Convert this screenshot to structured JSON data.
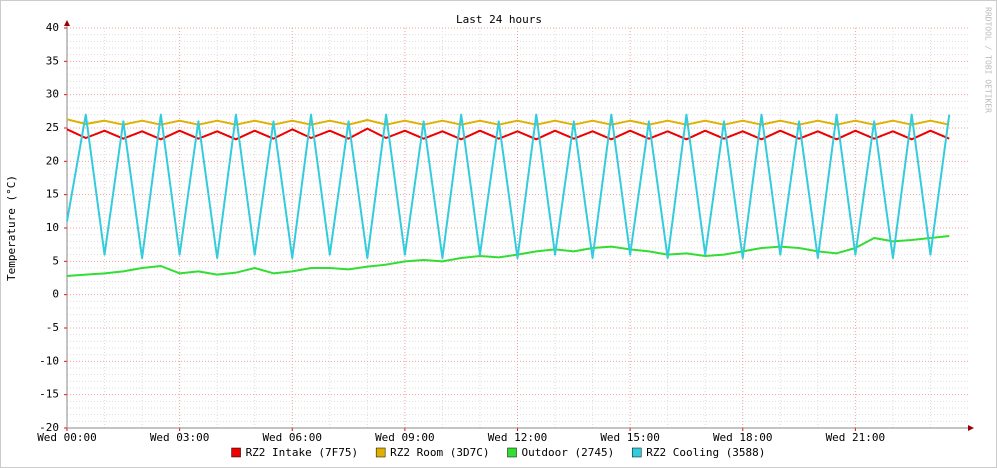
{
  "chart_data": {
    "type": "line",
    "title": "Last 24 hours",
    "y_label": "Temperature (°C)",
    "watermark": "RRDTOOL / TOBI OETIKER",
    "xlim": [
      0,
      24
    ],
    "xticks": [
      {
        "value": 0,
        "label": "Wed 00:00"
      },
      {
        "value": 3,
        "label": "Wed 03:00"
      },
      {
        "value": 6,
        "label": "Wed 06:00"
      },
      {
        "value": 9,
        "label": "Wed 09:00"
      },
      {
        "value": 12,
        "label": "Wed 12:00"
      },
      {
        "value": 15,
        "label": "Wed 15:00"
      },
      {
        "value": 18,
        "label": "Wed 18:00"
      },
      {
        "value": 21,
        "label": "Wed 21:00"
      }
    ],
    "ylim": [
      -20,
      40
    ],
    "yticks": [
      -20,
      -15,
      -10,
      -5,
      0,
      5,
      10,
      15,
      20,
      25,
      30,
      35,
      40
    ],
    "grid": true,
    "x": [
      0,
      0.5,
      1,
      1.5,
      2,
      2.5,
      3,
      3.5,
      4,
      4.5,
      5,
      5.5,
      6,
      6.5,
      7,
      7.5,
      8,
      8.5,
      9,
      9.5,
      10,
      10.5,
      11,
      11.5,
      12,
      12.5,
      13,
      13.5,
      14,
      14.5,
      15,
      15.5,
      16,
      16.5,
      17,
      17.5,
      18,
      18.5,
      19,
      19.5,
      20,
      20.5,
      21,
      21.5,
      22,
      22.5,
      23,
      23.5
    ],
    "series": [
      {
        "name": "RZ2 Intake (7F75)",
        "color": "#ee0000",
        "values": [
          24.8,
          23.5,
          24.6,
          23.4,
          24.5,
          23.3,
          24.6,
          23.4,
          24.5,
          23.3,
          24.6,
          23.4,
          24.8,
          23.5,
          24.6,
          23.4,
          24.9,
          23.5,
          24.6,
          23.4,
          24.5,
          23.3,
          24.6,
          23.4,
          24.5,
          23.3,
          24.6,
          23.4,
          24.5,
          23.3,
          24.6,
          23.4,
          24.5,
          23.3,
          24.6,
          23.4,
          24.5,
          23.3,
          24.6,
          23.4,
          24.5,
          23.3,
          24.6,
          23.4,
          24.5,
          23.3,
          24.6,
          23.4
        ]
      },
      {
        "name": "RZ2 Room (3D7C)",
        "color": "#e0b000",
        "values": [
          26.3,
          25.6,
          26.1,
          25.5,
          26.1,
          25.5,
          26.1,
          25.5,
          26.1,
          25.5,
          26.1,
          25.5,
          26.1,
          25.5,
          26.1,
          25.5,
          26.2,
          25.5,
          26.1,
          25.5,
          26.1,
          25.5,
          26.1,
          25.5,
          26.1,
          25.5,
          26.1,
          25.5,
          26.1,
          25.5,
          26.1,
          25.5,
          26.1,
          25.5,
          26.1,
          25.5,
          26.1,
          25.5,
          26.1,
          25.5,
          26.1,
          25.5,
          26.1,
          25.5,
          26.1,
          25.5,
          26.1,
          25.5
        ]
      },
      {
        "name": "Outdoor (2745)",
        "color": "#33dd33",
        "values": [
          2.8,
          3,
          3.2,
          3.5,
          4,
          4.3,
          3.2,
          3.5,
          3,
          3.3,
          4,
          3.2,
          3.5,
          4,
          4,
          3.8,
          4.2,
          4.5,
          5,
          5.2,
          5,
          5.5,
          5.8,
          5.6,
          6,
          6.5,
          6.8,
          6.5,
          7,
          7.2,
          6.8,
          6.5,
          6,
          6.2,
          5.8,
          6,
          6.5,
          7,
          7.2,
          7,
          6.5,
          6.2,
          7,
          8.5,
          8,
          8.2,
          8.5,
          8.8
        ]
      },
      {
        "name": "RZ2 Cooling (3588)",
        "color": "#33ccdd",
        "values": [
          11,
          27,
          6,
          26,
          5.5,
          27,
          6,
          26,
          5.5,
          27,
          6,
          26,
          5.5,
          27,
          6,
          26,
          5.5,
          27,
          6,
          26,
          5.5,
          27,
          6,
          26,
          5.5,
          27,
          6,
          26,
          5.5,
          27,
          6,
          26,
          5.5,
          27,
          6,
          26,
          5.5,
          27,
          6,
          26,
          5.5,
          27,
          6,
          26,
          5.5,
          27,
          6,
          27
        ]
      }
    ]
  }
}
